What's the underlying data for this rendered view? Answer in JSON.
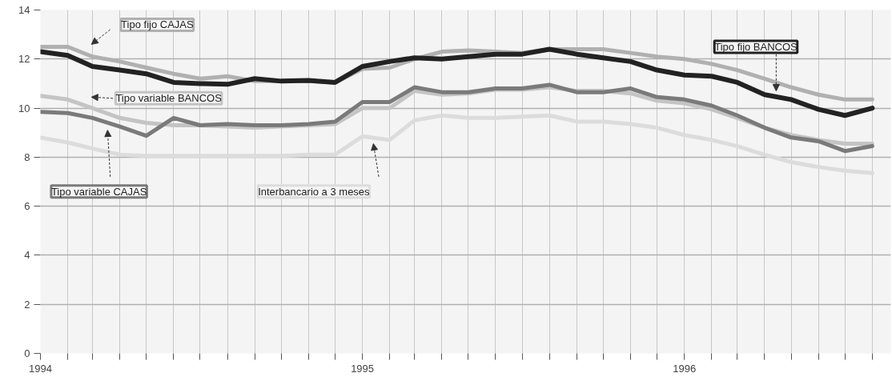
{
  "chart_data": {
    "type": "line",
    "x": [
      "1994-01",
      "1994-02",
      "1994-03",
      "1994-04",
      "1994-05",
      "1994-06",
      "1994-07",
      "1994-08",
      "1994-09",
      "1994-10",
      "1994-11",
      "1994-12",
      "1995-01",
      "1995-02",
      "1995-03",
      "1995-04",
      "1995-05",
      "1995-06",
      "1995-07",
      "1995-08",
      "1995-09",
      "1995-10",
      "1995-11",
      "1995-12",
      "1996-01",
      "1996-02",
      "1996-03",
      "1996-04",
      "1996-05",
      "1996-06",
      "1996-07",
      "1996-08"
    ],
    "series": [
      {
        "name": "Interbancario a 3 meses",
        "color": "#dcdcdc",
        "values": [
          8.8,
          8.6,
          8.35,
          8.1,
          8.05,
          8.05,
          8.05,
          8.05,
          8.05,
          8.05,
          8.1,
          8.1,
          8.85,
          8.7,
          9.5,
          9.7,
          9.6,
          9.6,
          9.65,
          9.7,
          9.45,
          9.45,
          9.35,
          9.2,
          8.9,
          8.7,
          8.45,
          8.1,
          7.8,
          7.6,
          7.45,
          7.35
        ]
      },
      {
        "name": "Tipo variable BANCOS",
        "color": "#c4c4c4",
        "values": [
          10.5,
          10.35,
          10.0,
          9.6,
          9.4,
          9.3,
          9.3,
          9.25,
          9.2,
          9.25,
          9.3,
          9.35,
          10.0,
          10.0,
          10.7,
          10.55,
          10.6,
          10.75,
          10.75,
          10.85,
          10.7,
          10.7,
          10.6,
          10.3,
          10.2,
          9.95,
          9.6,
          9.2,
          8.9,
          8.7,
          8.55,
          8.55
        ]
      },
      {
        "name": "Tipo variable CAJAS",
        "color": "#7a7a7a",
        "values": [
          9.85,
          9.8,
          9.6,
          9.25,
          8.87,
          9.6,
          9.3,
          9.35,
          9.3,
          9.3,
          9.35,
          9.45,
          10.25,
          10.25,
          10.85,
          10.65,
          10.65,
          10.8,
          10.8,
          10.95,
          10.65,
          10.65,
          10.8,
          10.45,
          10.35,
          10.1,
          9.7,
          9.2,
          8.8,
          8.65,
          8.25,
          8.45
        ]
      },
      {
        "name": "Tipo fijo CAJAS",
        "color": "#b0b0b0",
        "values": [
          12.5,
          12.5,
          12.1,
          11.9,
          11.65,
          11.4,
          11.2,
          11.3,
          11.1,
          11.1,
          11.1,
          11.05,
          11.6,
          11.65,
          12.0,
          12.3,
          12.35,
          12.3,
          12.25,
          12.4,
          12.4,
          12.4,
          12.25,
          12.1,
          12.0,
          11.8,
          11.55,
          11.2,
          10.85,
          10.55,
          10.35,
          10.35
        ]
      },
      {
        "name": "Tipo fijo BANCOS",
        "color": "#222222",
        "values": [
          12.3,
          12.15,
          11.7,
          11.55,
          11.4,
          11.05,
          11.0,
          10.97,
          11.2,
          11.1,
          11.13,
          11.05,
          11.7,
          11.9,
          12.05,
          12.0,
          12.1,
          12.2,
          12.2,
          12.4,
          12.2,
          12.05,
          11.9,
          11.55,
          11.35,
          11.3,
          11.05,
          10.55,
          10.35,
          9.95,
          9.7,
          10.0
        ]
      }
    ],
    "xlim": [
      "1994-01",
      "1996-08-22"
    ],
    "xticks": [
      {
        "value": "1994-01",
        "label": "1994"
      },
      {
        "value": "1994-02",
        "label": null
      },
      {
        "value": "1994-03",
        "label": null
      },
      {
        "value": "1994-04",
        "label": null
      },
      {
        "value": "1994-05",
        "label": null
      },
      {
        "value": "1994-06",
        "label": null
      },
      {
        "value": "1994-07",
        "label": null
      },
      {
        "value": "1994-08",
        "label": null
      },
      {
        "value": "1994-09",
        "label": null
      },
      {
        "value": "1994-10",
        "label": null
      },
      {
        "value": "1994-11",
        "label": null
      },
      {
        "value": "1994-12",
        "label": null
      },
      {
        "value": "1995-01",
        "label": "1995"
      },
      {
        "value": "1995-02",
        "label": null
      },
      {
        "value": "1995-03",
        "label": null
      },
      {
        "value": "1995-04",
        "label": null
      },
      {
        "value": "1995-05",
        "label": null
      },
      {
        "value": "1995-06",
        "label": null
      },
      {
        "value": "1995-07",
        "label": null
      },
      {
        "value": "1995-08",
        "label": null
      },
      {
        "value": "1995-09",
        "label": null
      },
      {
        "value": "1995-10",
        "label": null
      },
      {
        "value": "1995-11",
        "label": null
      },
      {
        "value": "1995-12",
        "label": null
      },
      {
        "value": "1996-01",
        "label": "1996"
      },
      {
        "value": "1996-02",
        "label": null
      },
      {
        "value": "1996-03",
        "label": null
      },
      {
        "value": "1996-04",
        "label": null
      },
      {
        "value": "1996-05",
        "label": null
      },
      {
        "value": "1996-06",
        "label": null
      },
      {
        "value": "1996-07",
        "label": null
      },
      {
        "value": "1996-08",
        "label": null
      }
    ],
    "ylim": [
      0,
      14
    ],
    "yticks": [
      0,
      2,
      4,
      6,
      8,
      10,
      12,
      14
    ],
    "grid": true
  }
}
